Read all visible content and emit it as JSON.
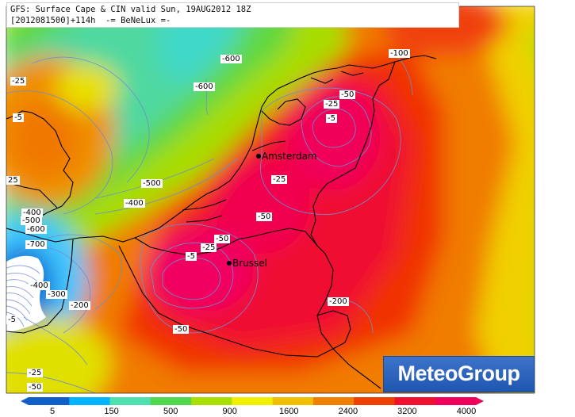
{
  "header": {
    "line1": "GFS: Surface Cape & CIN valid Sun, 19AUG2012 18Z",
    "line2": "[2012081500]+114h  -= BeNeLux =-"
  },
  "cities": {
    "amsterdam": "Amsterdam",
    "brussel": "Brussel"
  },
  "cin_labels": {
    "l100": "-100",
    "l600a": "-600",
    "l600b": "-600",
    "l25a": "-25",
    "l5a": "-5",
    "l25b": "25",
    "l500a": "-500",
    "l400a": "-400",
    "l400b": "-400",
    "l500b": "-500",
    "l600c": "-600",
    "l700": "-700",
    "l400c": "-400",
    "l300": "-300",
    "l200a": "-200",
    "l5b": "-5",
    "l50a": "-50",
    "l25c": "-25",
    "l5c": "-5",
    "l25d": "-25",
    "l50b": "-50",
    "l50c": "-50",
    "l25e": "-25",
    "l5d": "-5",
    "l50d": "-50",
    "l200b": "-200",
    "l25f": "-25",
    "l50e": "-50"
  },
  "logo": {
    "text": "MeteoGroup"
  },
  "legend": {
    "ticks": [
      "5",
      "150",
      "500",
      "900",
      "1600",
      "2400",
      "3200",
      "4000"
    ],
    "colors": [
      "#1060c8",
      "#00b4ff",
      "#50e0b0",
      "#50d850",
      "#a8e000",
      "#f0f000",
      "#f0c000",
      "#f08000",
      "#f04000",
      "#f01030",
      "#f0005a"
    ]
  }
}
